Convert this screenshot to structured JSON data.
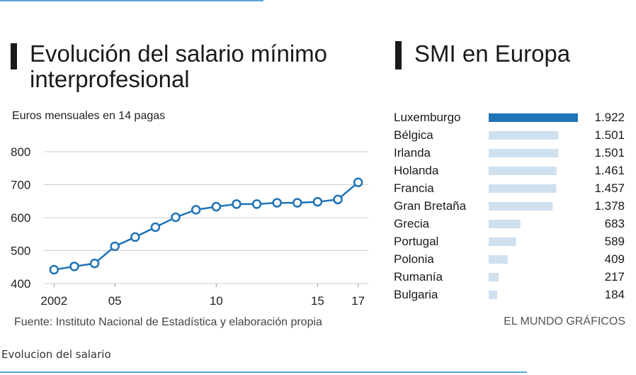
{
  "colors": {
    "accent": "#1f73b7",
    "bar_highlight": "#1f73b7",
    "bar_normal": "#cfe0ef",
    "rule": "#5ba3d4",
    "grid": "#cccccc"
  },
  "caption": "Evolucion del salario",
  "chart_data": [
    {
      "type": "line",
      "title": "Evolución del salario mínimo interprofesional",
      "subtitle": "Euros mensuales en 14 pagas",
      "x": [
        2002,
        2003,
        2004,
        2005,
        2006,
        2007,
        2008,
        2009,
        2010,
        2011,
        2012,
        2013,
        2014,
        2015,
        2016,
        2017
      ],
      "values": [
        442,
        452,
        461,
        513,
        541,
        571,
        601,
        624,
        633,
        641,
        641,
        645,
        645,
        648,
        655,
        707
      ],
      "x_ticks": [
        {
          "x": 2002,
          "label": "2002"
        },
        {
          "x": 2005,
          "label": "05"
        },
        {
          "x": 2010,
          "label": "10"
        },
        {
          "x": 2015,
          "label": "15"
        },
        {
          "x": 2017,
          "label": "17"
        }
      ],
      "y_ticks": [
        400,
        500,
        600,
        700,
        800
      ],
      "ylim": [
        400,
        800
      ],
      "xlim": [
        2001.5,
        2017.5
      ],
      "grid": true,
      "source": "Fuente: Instituto Nacional de Estadística y elaboración propia"
    },
    {
      "type": "bar",
      "orientation": "horizontal",
      "title": "SMI en Europa",
      "categories": [
        "Luxemburgo",
        "Bélgica",
        "Irlanda",
        "Holanda",
        "Francia",
        "Gran Bretaña",
        "Grecia",
        "Portugal",
        "Polonia",
        "Rumanía",
        "Bulgaria"
      ],
      "values": [
        1922,
        1501,
        1501,
        1461,
        1457,
        1378,
        683,
        589,
        409,
        217,
        184
      ],
      "value_labels": [
        "1.922",
        "1.501",
        "1.501",
        "1.461",
        "1.457",
        "1.378",
        "683",
        "589",
        "409",
        "217",
        "184"
      ],
      "highlight_index": 0,
      "xlim": [
        0,
        1922
      ],
      "credit": "EL MUNDO GRÁFICOS"
    }
  ]
}
